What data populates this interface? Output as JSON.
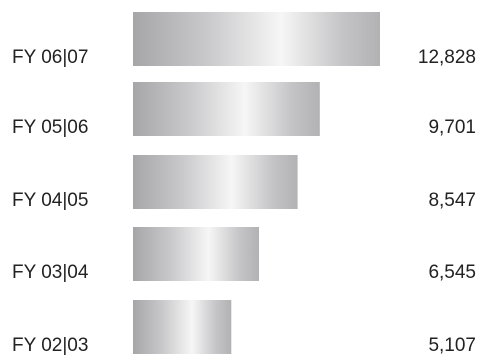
{
  "chart_data": {
    "type": "bar",
    "orientation": "horizontal",
    "categories": [
      "FY 06|07",
      "FY 05|06",
      "FY 04|05",
      "FY 03|04",
      "FY 02|03"
    ],
    "values": [
      12828,
      9701,
      8547,
      6545,
      5107
    ],
    "value_labels": [
      "12,828",
      "9,701",
      "8,547",
      "6,545",
      "5,107"
    ],
    "title": "",
    "xlabel": "",
    "ylabel": "",
    "grid": false,
    "legend": "none",
    "bar_style": "silver-gradient"
  },
  "colors": {
    "bar_dark": "#a8a8aa",
    "bar_light": "#f4f4f4",
    "text": "#222222"
  }
}
